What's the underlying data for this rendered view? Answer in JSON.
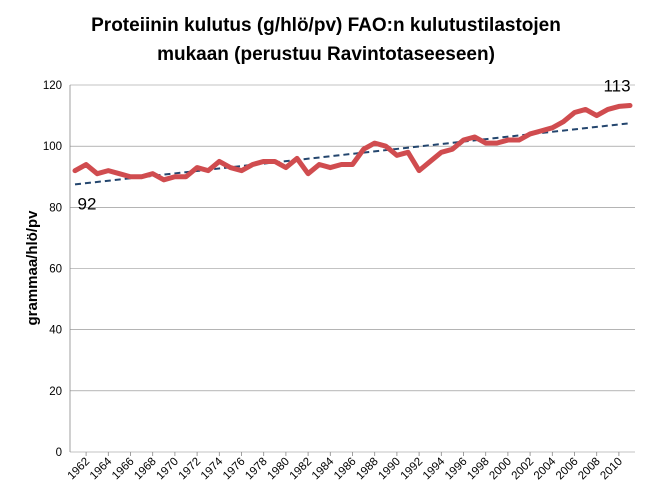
{
  "chart_data": {
    "type": "line",
    "title_lines": [
      "Proteiinin kulutus (g/hlö/pv) FAO:n kulutustilastojen",
      "mukaan (perustuu Ravintotaseeseen)"
    ],
    "xlabel": "",
    "ylabel": "grammaa/hlö/pv",
    "ylim": [
      0,
      120
    ],
    "y_ticks": [
      "0",
      "20",
      "40",
      "60",
      "80",
      "100",
      "120"
    ],
    "x_ticks": [
      "1962",
      "1964",
      "1966",
      "1968",
      "1970",
      "1972",
      "1974",
      "1976",
      "1978",
      "1980",
      "1982",
      "1984",
      "1986",
      "1988",
      "1990",
      "1992",
      "1994",
      "1996",
      "1998",
      "2000",
      "2002",
      "2004",
      "2006",
      "2008",
      "2010"
    ],
    "grid": true,
    "series": [
      {
        "color": "#d04c4f",
        "x": [
          1961,
          1962,
          1963,
          1964,
          1965,
          1966,
          1967,
          1968,
          1969,
          1970,
          1971,
          1972,
          1973,
          1974,
          1975,
          1976,
          1977,
          1978,
          1979,
          1980,
          1981,
          1982,
          1983,
          1984,
          1985,
          1986,
          1987,
          1988,
          1989,
          1990,
          1991,
          1992,
          1993,
          1994,
          1995,
          1996,
          1997,
          1998,
          1999,
          2000,
          2001,
          2002,
          2003,
          2004,
          2005,
          2006,
          2007,
          2008,
          2009,
          2010,
          2011
        ],
        "values": [
          92,
          94,
          91,
          92,
          91,
          90,
          90,
          91,
          89,
          90,
          90,
          93,
          92,
          95,
          93,
          92,
          94,
          95,
          95,
          93,
          96,
          91,
          94,
          93,
          94,
          94,
          99,
          101,
          100,
          97,
          98,
          92,
          95,
          98,
          99,
          102,
          103,
          101,
          101,
          102,
          102,
          104,
          105,
          106,
          108,
          111,
          112,
          110,
          112,
          113,
          113.3
        ]
      },
      {
        "style": "dashed",
        "color": "#24466e",
        "x": [
          1961,
          2011
        ],
        "values": [
          87.5,
          107.5
        ]
      }
    ],
    "annotations": [
      {
        "text": "92",
        "x": 1961,
        "y": 92
      },
      {
        "text": "113",
        "x": 2011,
        "y": 113
      }
    ]
  }
}
